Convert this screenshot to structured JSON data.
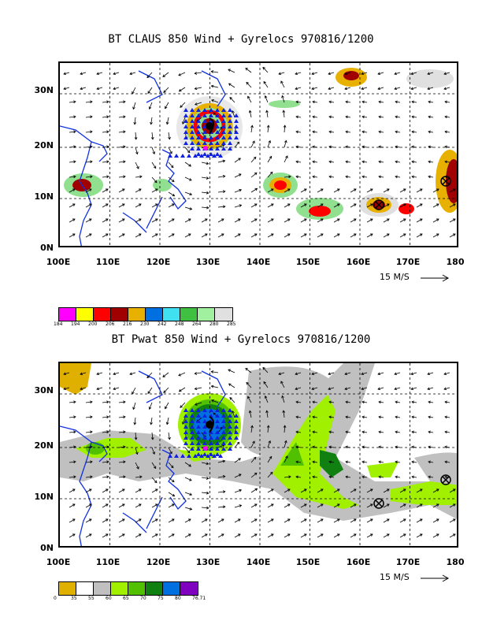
{
  "panels": [
    {
      "title": "BT CLAUS 850 Wind + Gyrelocs 970816/1200",
      "lat_labels": [
        "30N",
        "20N",
        "10N",
        "0N"
      ],
      "lon_labels": [
        "100E",
        "110E",
        "120E",
        "130E",
        "140E",
        "150E",
        "160E",
        "170E",
        "180"
      ],
      "scale_label": "15 M/S",
      "legend": {
        "colors": [
          "#ff00ff",
          "#ffff00",
          "#ff0000",
          "#a00000",
          "#e8b000",
          "#0070e0",
          "#40e0f0",
          "#40c040",
          "#a0f0a0",
          "#e0e0e0"
        ],
        "labels": [
          "184",
          "194",
          "200",
          "206",
          "216",
          "230",
          "242",
          "248",
          "264",
          "280",
          "285"
        ]
      }
    },
    {
      "title": "BT Pwat 850 Wind + Gyrelocs 970816/1200",
      "lat_labels": [
        "30N",
        "20N",
        "10N",
        "0N"
      ],
      "lon_labels": [
        "100E",
        "110E",
        "120E",
        "130E",
        "140E",
        "150E",
        "160E",
        "170E",
        "180"
      ],
      "scale_label": "15 M/S",
      "legend": {
        "colors": [
          "#e0b000",
          "#ffffff",
          "#c0c0c0",
          "#a0f000",
          "#50c000",
          "#108010",
          "#0070e0",
          "#8000c0"
        ],
        "labels": [
          "0",
          "35",
          "55",
          "60",
          "65",
          "70",
          "75",
          "80",
          "76.71"
        ]
      }
    }
  ]
}
